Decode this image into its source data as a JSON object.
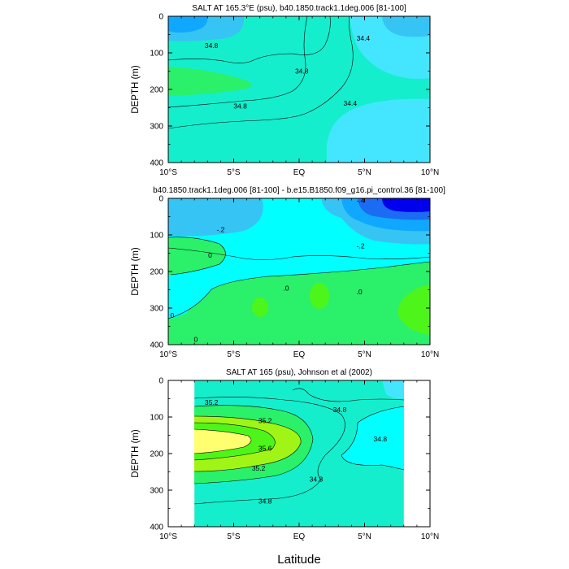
{
  "x_axis_label": "Latitude",
  "colors": {
    "sky": "#35c4f4",
    "light_cyan": "#44e6ff",
    "mid_blue": "#10a8ff",
    "blue": "#1b6cf2",
    "deep_blue": "#0000ee",
    "cyan": "#00ffff",
    "aqua": "#15eecd",
    "green_light": "#2bf06a",
    "green": "#4ef51a",
    "lime": "#a0f516",
    "yellow": "#ffff70"
  },
  "chart_data": [
    {
      "type": "contour",
      "title": "SALT AT 165.3°E (psu), b40.1850.track1.1deg.006 [81-100]",
      "ylabel": "DEPTH (m)",
      "xlabel": "",
      "x_ticks": [
        "10°S",
        "5°S",
        "EQ",
        "5°N",
        "10°N"
      ],
      "x_values": [
        -10,
        -5,
        0,
        5,
        10
      ],
      "xlim": [
        -10,
        10
      ],
      "y_ticks": [
        "0",
        "100",
        "200",
        "300",
        "400"
      ],
      "y_values": [
        0,
        100,
        200,
        300,
        400
      ],
      "ylim": [
        400,
        0
      ],
      "contour_labels": [
        {
          "text": "34.8",
          "x": -6.7,
          "y": 80
        },
        {
          "text": "34.8",
          "x": 0.2,
          "y": 150
        },
        {
          "text": "34.8",
          "x": -4.5,
          "y": 245
        },
        {
          "text": "34.4",
          "x": 4.9,
          "y": 60
        },
        {
          "text": "34.4",
          "x": 3.9,
          "y": 238
        }
      ]
    },
    {
      "type": "contour",
      "title": "b40.1850.track1.1deg.006 [81-100] - b.e15.B1850.f09_g16.pi_control.36 [81-100]",
      "ylabel": "DEPTH (m)",
      "xlabel": "",
      "x_ticks": [
        "10°S",
        "5°S",
        "EQ",
        "5°N",
        "10°N"
      ],
      "x_values": [
        -10,
        -5,
        0,
        5,
        10
      ],
      "xlim": [
        -10,
        10
      ],
      "y_ticks": [
        "0",
        "100",
        "200",
        "300",
        "400"
      ],
      "y_values": [
        0,
        100,
        200,
        300,
        400
      ],
      "ylim": [
        400,
        0
      ],
      "contour_labels": [
        {
          "text": "-.2",
          "x": -6.0,
          "y": 85
        },
        {
          "text": "-.4",
          "x": 4.7,
          "y": 5
        },
        {
          "text": "-.2",
          "x": 4.7,
          "y": 130
        },
        {
          "text": "0",
          "x": -6.8,
          "y": 155
        },
        {
          "text": ".0",
          "x": -1.0,
          "y": 245
        },
        {
          "text": ".0",
          "x": 4.6,
          "y": 255
        },
        {
          "text": "0",
          "x": -9.7,
          "y": 320
        },
        {
          "text": "0",
          "x": -7.9,
          "y": 385
        }
      ]
    },
    {
      "type": "contour",
      "title": "SALT AT 165 (psu), Johnson et al (2002)",
      "ylabel": "DEPTH (m)",
      "xlabel": "Latitude",
      "x_ticks": [
        "10°S",
        "5°S",
        "EQ",
        "5°N",
        "10°N"
      ],
      "x_values": [
        -10,
        -5,
        0,
        5,
        10
      ],
      "xlim": [
        -10,
        10
      ],
      "y_ticks": [
        "0",
        "100",
        "200",
        "300",
        "400"
      ],
      "y_values": [
        0,
        100,
        200,
        300,
        400
      ],
      "ylim": [
        400,
        0
      ],
      "data_extent_x": [
        -8,
        8
      ],
      "contour_labels": [
        {
          "text": "35.2",
          "x": -6.7,
          "y": 60
        },
        {
          "text": "35.2",
          "x": -2.6,
          "y": 110
        },
        {
          "text": "35.6",
          "x": -2.6,
          "y": 185
        },
        {
          "text": "35.2",
          "x": -3.1,
          "y": 240
        },
        {
          "text": "34.8",
          "x": 3.1,
          "y": 80
        },
        {
          "text": "34.8",
          "x": 6.2,
          "y": 160
        },
        {
          "text": "34.8",
          "x": 1.3,
          "y": 270
        },
        {
          "text": "34.8",
          "x": -2.6,
          "y": 330
        }
      ]
    }
  ]
}
